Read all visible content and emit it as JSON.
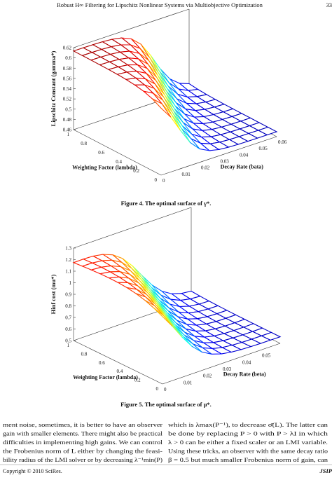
{
  "header": {
    "title": "Robust H∞ Filtering for Lipschitz Nonlinear Systems via Multiobjective Optimization",
    "page": "33"
  },
  "figures": [
    {
      "z_label": "Lipschitz Constant (gamma*)",
      "z_ticks": [
        "0.46",
        "0.48",
        "0.5",
        "0.52",
        "0.54",
        "0.56",
        "0.58",
        "0.6",
        "0.62"
      ],
      "x_label": "Weighting Factor (lambda)",
      "x_ticks": [
        "1",
        "0.8",
        "0.6",
        "0.4",
        "0.2",
        "0"
      ],
      "y_label": "Decay Rate (bata)",
      "y_ticks": [
        "0",
        "0.01",
        "0.02",
        "0.03",
        "0.04",
        "0.05",
        "0.06"
      ],
      "caption": "Figure 4. The optimal surface of γ*."
    },
    {
      "z_label": "Hinf cost (mu*)",
      "z_ticks": [
        "0.5",
        "0.6",
        "0.7",
        "0.8",
        "0.9",
        "1",
        "1.1",
        "1.2",
        "1.3"
      ],
      "x_label": "Weighting Factor (lambda)",
      "x_ticks": [
        "1",
        "0.8",
        "0.6",
        "0.4",
        "0.2",
        "0"
      ],
      "y_label": "Decay Rate (beta)",
      "y_ticks": [
        "0",
        "0.01",
        "0.02",
        "0.03",
        "0.04",
        "0.05"
      ],
      "caption": "Figure 5. The optimal surface of μ*."
    }
  ],
  "body": {
    "left": [
      "ment noise, sometimes, it is better to have an observer",
      "gain with smaller elements. There might also be practical",
      "difficulties in implementing high gains. We can control",
      "the Frobenius norm of L either by changing the feasi-",
      "bility radius of the LMI solver or by decreasing λ⁻¹min(P)"
    ],
    "right": [
      "which is λmax(P⁻¹), to decrease σ̄(L). The latter can",
      "be done by replacing P > 0 with P > λI in which",
      "λ > 0 can be either a fixed scaler or an LMI variable.",
      "Using these tricks, an observer with the same decay ratio",
      "β = 0.5 but much smaller Frobenius norm of gain, can"
    ]
  },
  "footer": {
    "copyright": "Copyright © 2010 SciRes.",
    "journal": "JSIP"
  }
}
